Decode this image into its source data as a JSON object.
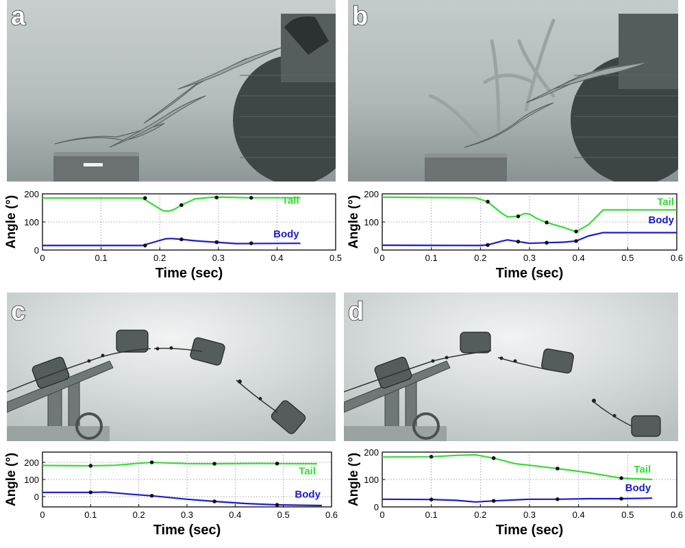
{
  "colors": {
    "tail": "#33dd33",
    "body": "#1a1acc",
    "marker": "#111111"
  },
  "panels": [
    {
      "id": "a",
      "letter": "a",
      "photo_subject": "lizard-leap-photo",
      "chart_data": {
        "type": "line",
        "xlabel": "Time (sec)",
        "ylabel": "Angle (°)",
        "xlim": [
          0,
          0.5
        ],
        "ylim": [
          0,
          200
        ],
        "xticks": [
          0,
          0.1,
          0.2,
          0.3,
          0.4,
          0.5
        ],
        "xticklabels": [
          "0",
          "0.1",
          "0.2",
          "0.3",
          "0.4",
          "0.5"
        ],
        "yticks": [
          0,
          100,
          200
        ],
        "yticklabels": [
          "0",
          "100",
          "200"
        ],
        "grid": true,
        "series": [
          {
            "name": "Tail",
            "color": "#33dd33",
            "x": [
              0,
              0.17,
              0.19,
              0.205,
              0.215,
              0.225,
              0.237,
              0.26,
              0.29,
              0.31,
              0.35,
              0.44
            ],
            "y": [
              185,
              185,
              160,
              140,
              138,
              145,
              160,
              182,
              188,
              188,
              186,
              186
            ],
            "markers_x": [
              0.175,
              0.237,
              0.297,
              0.356
            ],
            "markers_y": [
              185,
              160,
              187,
              186
            ]
          },
          {
            "name": "Body",
            "color": "#1a1acc",
            "x": [
              0,
              0.17,
              0.19,
              0.21,
              0.22,
              0.237,
              0.26,
              0.3,
              0.33,
              0.44
            ],
            "y": [
              16,
              16,
              28,
              40,
              41,
              38,
              33,
              27,
              23,
              24
            ],
            "markers_x": [
              0.175,
              0.237,
              0.297,
              0.356
            ],
            "markers_y": [
              16,
              38,
              28,
              24
            ]
          }
        ]
      }
    },
    {
      "id": "b",
      "letter": "b",
      "photo_subject": "lizard-leap-photo",
      "chart_data": {
        "type": "line",
        "xlabel": "Time (sec)",
        "ylabel": "Angle (°)",
        "xlim": [
          0,
          0.6
        ],
        "ylim": [
          0,
          200
        ],
        "xticks": [
          0,
          0.1,
          0.2,
          0.3,
          0.4,
          0.5,
          0.6
        ],
        "xticklabels": [
          "0",
          "0.1",
          "0.2",
          "0.3",
          "0.4",
          "0.5",
          "0.6"
        ],
        "yticks": [
          0,
          100,
          200
        ],
        "yticklabels": [
          "0",
          "100",
          "200"
        ],
        "grid": true,
        "series": [
          {
            "name": "Tail",
            "color": "#33dd33",
            "x": [
              0,
              0.19,
              0.215,
              0.24,
              0.255,
              0.277,
              0.29,
              0.3,
              0.315,
              0.335,
              0.37,
              0.395,
              0.42,
              0.45,
              0.6
            ],
            "y": [
              188,
              186,
              172,
              135,
              118,
              120,
              130,
              128,
              112,
              98,
              80,
              65,
              90,
              143,
              143
            ],
            "markers_x": [
              0.215,
              0.277,
              0.335,
              0.395
            ],
            "markers_y": [
              172,
              120,
              98,
              66
            ]
          },
          {
            "name": "Body",
            "color": "#1a1acc",
            "x": [
              0,
              0.2,
              0.215,
              0.24,
              0.255,
              0.277,
              0.3,
              0.335,
              0.37,
              0.395,
              0.42,
              0.45,
              0.6
            ],
            "y": [
              17,
              16,
              18,
              30,
              36,
              30,
              24,
              26,
              28,
              32,
              50,
              62,
              62
            ],
            "markers_x": [
              0.215,
              0.277,
              0.335,
              0.395
            ],
            "markers_y": [
              18,
              30,
              26,
              32
            ]
          }
        ]
      }
    },
    {
      "id": "c",
      "letter": "c",
      "photo_subject": "robot-leap-photo",
      "chart_data": {
        "type": "line",
        "xlabel": "Time (sec)",
        "ylabel": "Angle (°)",
        "xlim": [
          0,
          0.6
        ],
        "ylim": [
          -60,
          260
        ],
        "xticks": [
          0,
          0.1,
          0.2,
          0.3,
          0.4,
          0.5,
          0.6
        ],
        "xticklabels": [
          "0",
          "0.1",
          "0.2",
          "0.3",
          "0.4",
          "0.5",
          "0.6"
        ],
        "yticks": [
          0,
          100,
          200
        ],
        "yticklabels": [
          "0",
          "100",
          "200"
        ],
        "grid": true,
        "series": [
          {
            "name": "Tail",
            "color": "#33dd33",
            "x": [
              0,
              0.1,
              0.15,
              0.2,
              0.227,
              0.3,
              0.357,
              0.45,
              0.49,
              0.57
            ],
            "y": [
              182,
              180,
              183,
              195,
              200,
              193,
              192,
              194,
              193,
              192
            ],
            "markers_x": [
              0.1,
              0.227,
              0.357,
              0.487
            ],
            "markers_y": [
              180,
              200,
              192,
              193
            ]
          },
          {
            "name": "Body",
            "color": "#1a1acc",
            "x": [
              0,
              0.1,
              0.13,
              0.18,
              0.227,
              0.3,
              0.357,
              0.42,
              0.487,
              0.58
            ],
            "y": [
              25,
              25,
              27,
              15,
              5,
              -15,
              -28,
              -40,
              -48,
              -52
            ],
            "markers_x": [
              0.1,
              0.227,
              0.357,
              0.487
            ],
            "markers_y": [
              25,
              5,
              -28,
              -48
            ]
          }
        ]
      }
    },
    {
      "id": "d",
      "letter": "d",
      "photo_subject": "robot-leap-photo",
      "chart_data": {
        "type": "line",
        "xlabel": "Time (sec)",
        "ylabel": "Angle (°)",
        "xlim": [
          0,
          0.6
        ],
        "ylim": [
          0,
          200
        ],
        "xticks": [
          0,
          0.1,
          0.2,
          0.3,
          0.4,
          0.5,
          0.6
        ],
        "xticklabels": [
          "0",
          "0.1",
          "0.2",
          "0.3",
          "0.4",
          "0.5",
          "0.6"
        ],
        "yticks": [
          0,
          100,
          200
        ],
        "yticklabels": [
          "0",
          "100",
          "200"
        ],
        "grid": true,
        "series": [
          {
            "name": "Tail",
            "color": "#33dd33",
            "x": [
              0,
              0.1,
              0.15,
              0.19,
              0.227,
              0.27,
              0.32,
              0.357,
              0.42,
              0.487,
              0.55
            ],
            "y": [
              182,
              183,
              188,
              190,
              178,
              158,
              148,
              140,
              125,
              105,
              100
            ],
            "markers_x": [
              0.1,
              0.227,
              0.357,
              0.487
            ],
            "markers_y": [
              183,
              178,
              140,
              105
            ]
          },
          {
            "name": "Body",
            "color": "#1a1acc",
            "x": [
              0,
              0.1,
              0.15,
              0.19,
              0.227,
              0.3,
              0.357,
              0.42,
              0.487,
              0.55
            ],
            "y": [
              28,
              27,
              24,
              18,
              22,
              28,
              28,
              30,
              30,
              32
            ],
            "markers_x": [
              0.1,
              0.227,
              0.357,
              0.487
            ],
            "markers_y": [
              27,
              22,
              28,
              30
            ]
          }
        ]
      }
    }
  ]
}
